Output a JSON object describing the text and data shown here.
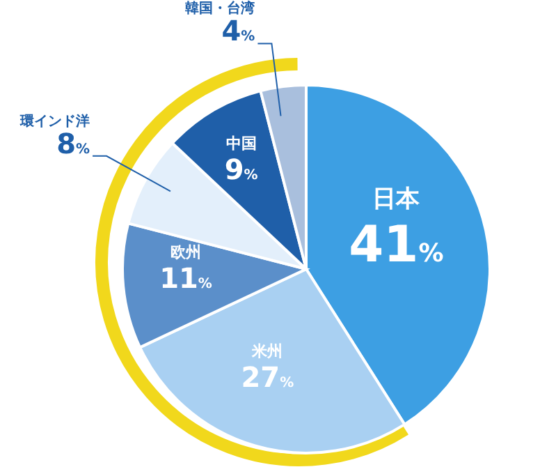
{
  "chart_data": {
    "type": "pie",
    "categories": [
      "日本",
      "米州",
      "欧州",
      "環インド洋",
      "中国",
      "韓国・台湾"
    ],
    "values": [
      41,
      27,
      11,
      8,
      9,
      4
    ],
    "value_labels": [
      "41%",
      "27%",
      "11%",
      "8%",
      "9%",
      "4%"
    ],
    "colors": [
      "#3d9fe3",
      "#a9d0f2",
      "#5b8fca",
      "#e3effb",
      "#1f5fa9",
      "#a9bfdd"
    ]
  }
}
